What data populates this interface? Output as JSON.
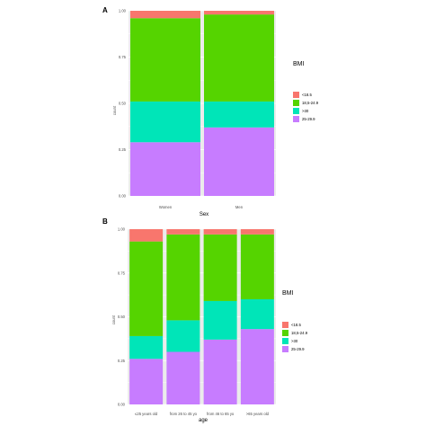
{
  "chart_data": [
    {
      "panel": "A",
      "type": "bar",
      "stacked": true,
      "xlabel": "Sex",
      "ylabel": "count",
      "ylim": [
        0,
        1
      ],
      "yticks": [
        "0.00",
        "0.25",
        "0.50",
        "0.75",
        "1.00"
      ],
      "categories": [
        "Women",
        "Men"
      ],
      "legend_title": "BMI",
      "legend_position": "right",
      "series": [
        {
          "name": "25-29.9",
          "color": "#c77cff",
          "values": [
            0.29,
            0.37
          ]
        },
        {
          "name": ">30",
          "color": "#00e5b8",
          "values": [
            0.22,
            0.14
          ]
        },
        {
          "name": "18,5-24.9",
          "color": "#55d400",
          "values": [
            0.45,
            0.47
          ]
        },
        {
          "name": "<18.5",
          "color": "#f8766d",
          "values": [
            0.04,
            0.02
          ]
        }
      ]
    },
    {
      "panel": "B",
      "type": "bar",
      "stacked": true,
      "xlabel": "age",
      "ylabel": "count",
      "ylim": [
        0,
        1
      ],
      "yticks": [
        "0.00",
        "0.25",
        "0.50",
        "0.75",
        "1.00"
      ],
      "categories": [
        "≤25 years old",
        "from 26 to 45 yo",
        "from 46 to 65 yo",
        ">65 years old"
      ],
      "legend_title": "BMI",
      "legend_position": "right",
      "series": [
        {
          "name": "25-29.9",
          "color": "#c77cff",
          "values": [
            0.26,
            0.3,
            0.37,
            0.43
          ]
        },
        {
          "name": ">30",
          "color": "#00e5b8",
          "values": [
            0.13,
            0.18,
            0.22,
            0.17
          ]
        },
        {
          "name": "18,5-24.9",
          "color": "#55d400",
          "values": [
            0.54,
            0.49,
            0.38,
            0.37
          ]
        },
        {
          "name": "<18.5",
          "color": "#f8766d",
          "values": [
            0.07,
            0.03,
            0.03,
            0.03
          ]
        }
      ]
    }
  ],
  "legend_order": [
    "<18.5",
    "18,5-24.9",
    ">30",
    "25-29.9"
  ],
  "panel_background": "#ebebeb",
  "grid_color": "#ffffff"
}
